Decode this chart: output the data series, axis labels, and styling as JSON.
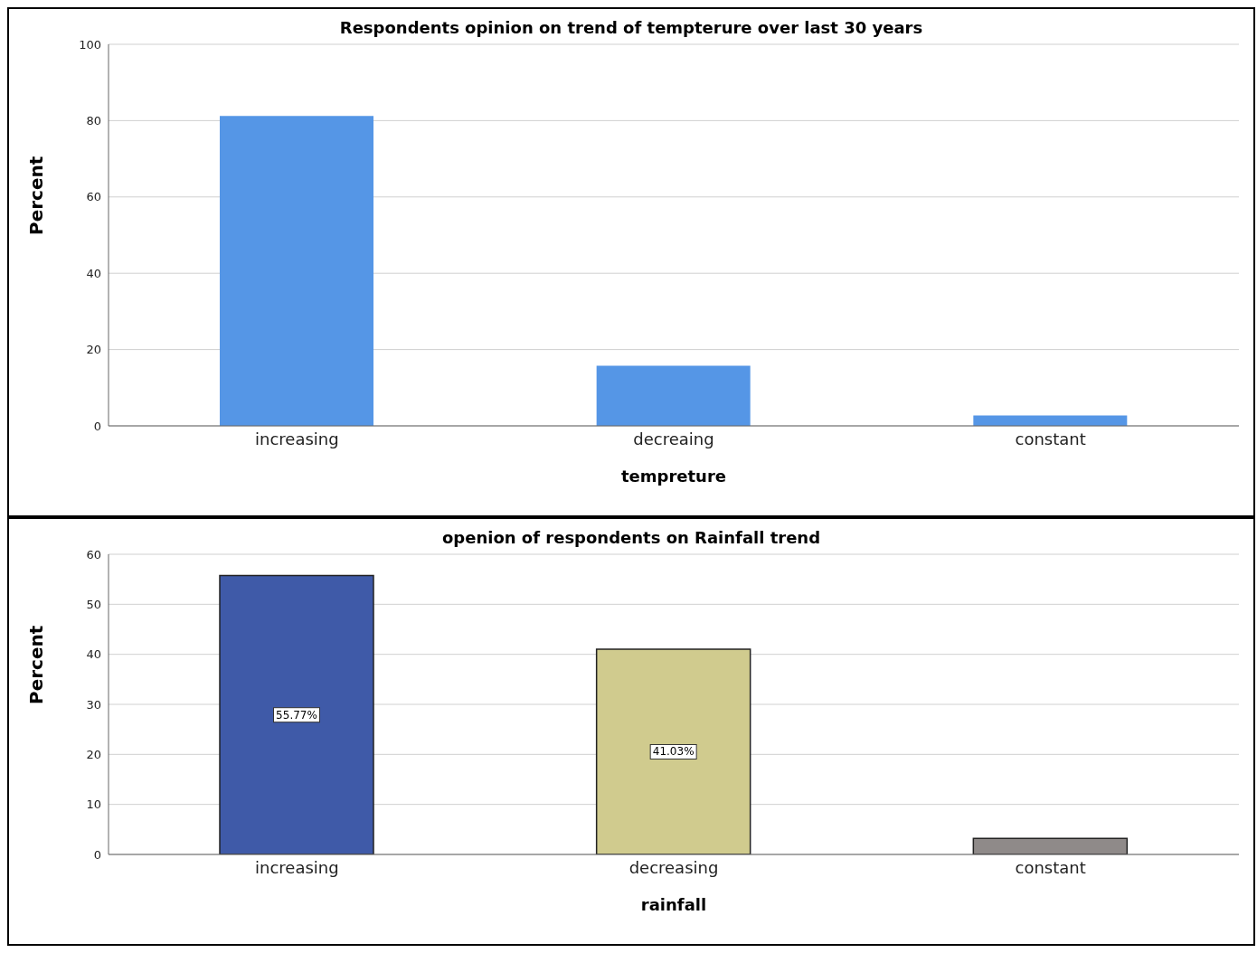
{
  "chart_data": [
    {
      "type": "bar",
      "title": "Respondents opinion on trend of tempterure over last 30 years",
      "xlabel": "tempreture",
      "ylabel": "Percent",
      "categories": [
        "increasing",
        "decreaing",
        "constant"
      ],
      "values": [
        81.25,
        15.75,
        2.75
      ],
      "color": "#5596e6",
      "ylim": [
        0,
        100
      ],
      "yticks": [
        0,
        20,
        40,
        60,
        80,
        100
      ],
      "grid": "y"
    },
    {
      "type": "bar",
      "title": "openion of respondents on Rainfall trend",
      "xlabel": "rainfall",
      "ylabel": "Percent",
      "categories": [
        "increasing",
        "decreasing",
        "constant"
      ],
      "values": [
        55.77,
        41.03,
        3.2
      ],
      "colors": [
        "#3f5aa8",
        "#d0cb8e",
        "#8f8a89"
      ],
      "value_labels": [
        "55.77%",
        "41.03%",
        null
      ],
      "ylim": [
        0,
        60
      ],
      "yticks": [
        0,
        10,
        20,
        30,
        40,
        50,
        60
      ],
      "grid": "y"
    }
  ]
}
